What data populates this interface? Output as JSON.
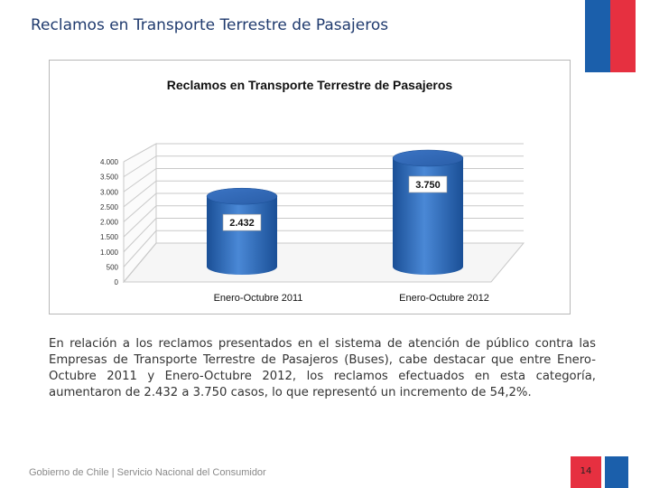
{
  "slide": {
    "title": "Reclamos en Transporte Terrestre de Pasajeros",
    "paragraph": "En relación a los reclamos presentados en el sistema de atención de público contra las Empresas de Transporte Terrestre de Pasajeros (Buses), cabe destacar que entre Enero-Octubre 2011 y Enero-Octubre 2012, los reclamos efectuados en esta categoría, aumentaron de 2.432 a 3.750 casos, lo que representó un incremento de 54,2%.",
    "footer": "Gobierno de Chile | Servicio Nacional del Consumidor",
    "page_number": "14"
  },
  "colors": {
    "brand_blue": "#1b5fab",
    "brand_red": "#e63040",
    "bar": "#2e6dbf"
  },
  "chart_data": {
    "type": "bar",
    "title": "Reclamos en Transporte Terrestre de Pasajeros",
    "categories": [
      "Enero-Octubre 2011",
      "Enero-Octubre 2012"
    ],
    "values": [
      2432,
      3750
    ],
    "value_labels": [
      "2.432",
      "3.750"
    ],
    "ylim": [
      0,
      4000
    ],
    "yticks": [
      0,
      500,
      1000,
      1500,
      2000,
      2500,
      3000,
      3500,
      4000
    ],
    "ytick_labels": [
      "0",
      "500",
      "1.000",
      "1.500",
      "2.000",
      "2.500",
      "3.000",
      "3.500",
      "4.000"
    ],
    "xlabel": "",
    "ylabel": "",
    "grid": true
  }
}
